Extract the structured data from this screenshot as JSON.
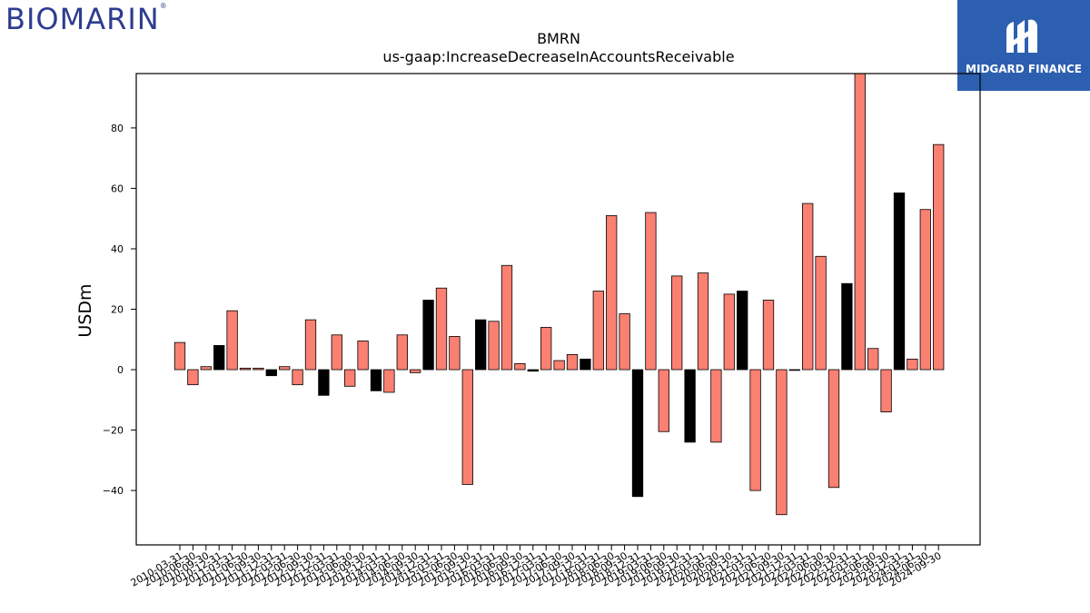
{
  "logos": {
    "left_text": "BIOMARIN",
    "left_reg": "®",
    "right_text": "MIDGARD FINANCE"
  },
  "colors": {
    "bar_default": "#fa8072",
    "bar_highlight": "#000000",
    "logo_left": "#2e3c8f",
    "logo_right_bg": "#2d5fb0"
  },
  "chart_data": {
    "type": "bar",
    "title": "BMRN",
    "subtitle": "us-gaap:IncreaseDecreaseInAccountsReceivable",
    "ylabel": "USDm",
    "xlabel": "",
    "ylim": [
      -58,
      98
    ],
    "yticks": [
      -40,
      -20,
      0,
      20,
      40,
      60,
      80
    ],
    "grid": false,
    "categories": [
      "2010-03-31",
      "2010-06-30",
      "2010-09-30",
      "2010-12-31",
      "2011-03-31",
      "2011-06-30",
      "2011-09-30",
      "2011-12-31",
      "2012-03-31",
      "2012-06-30",
      "2012-09-30",
      "2012-12-31",
      "2013-03-31",
      "2013-06-30",
      "2013-09-30",
      "2013-12-31",
      "2014-03-31",
      "2014-06-30",
      "2014-09-30",
      "2014-12-31",
      "2015-03-31",
      "2015-06-30",
      "2015-09-30",
      "2015-12-31",
      "2016-03-31",
      "2016-06-30",
      "2016-09-30",
      "2016-12-31",
      "2017-03-31",
      "2017-06-30",
      "2017-09-30",
      "2017-12-31",
      "2018-03-31",
      "2018-06-30",
      "2018-09-30",
      "2018-12-31",
      "2019-03-31",
      "2019-06-30",
      "2019-09-30",
      "2019-12-31",
      "2020-03-31",
      "2020-06-30",
      "2020-09-30",
      "2020-12-31",
      "2021-03-31",
      "2021-06-30",
      "2021-09-30",
      "2021-12-31",
      "2022-03-31",
      "2022-06-30",
      "2022-09-30",
      "2022-12-31",
      "2023-03-31",
      "2023-06-30",
      "2023-09-30",
      "2023-12-31",
      "2024-03-31",
      "2024-06-30",
      "2024-09-30"
    ],
    "values": [
      9,
      -5,
      1,
      8,
      19.5,
      0.5,
      0.5,
      -2,
      1,
      -5,
      16.5,
      -8.5,
      11.5,
      -5.5,
      9.5,
      -7,
      -7.5,
      11.5,
      -1,
      23,
      27,
      11,
      -38,
      16.5,
      16,
      34.5,
      2,
      -0.5,
      14,
      3,
      5,
      3.5,
      26,
      51,
      18.5,
      -42,
      52,
      -20.5,
      31,
      -24,
      32,
      -24,
      25,
      26,
      -40,
      23,
      -48,
      0,
      55,
      37.5,
      -39,
      28.5,
      98,
      7,
      -14,
      58.5,
      3.5,
      53,
      74.5
    ],
    "highlight": [
      false,
      false,
      false,
      true,
      false,
      false,
      false,
      true,
      false,
      false,
      false,
      true,
      false,
      false,
      false,
      true,
      false,
      false,
      false,
      true,
      false,
      false,
      false,
      true,
      false,
      false,
      false,
      true,
      false,
      false,
      false,
      true,
      false,
      false,
      false,
      true,
      false,
      false,
      false,
      true,
      false,
      false,
      false,
      true,
      false,
      false,
      false,
      true,
      false,
      false,
      false,
      true,
      false,
      false,
      false,
      true,
      false,
      false,
      false
    ]
  }
}
